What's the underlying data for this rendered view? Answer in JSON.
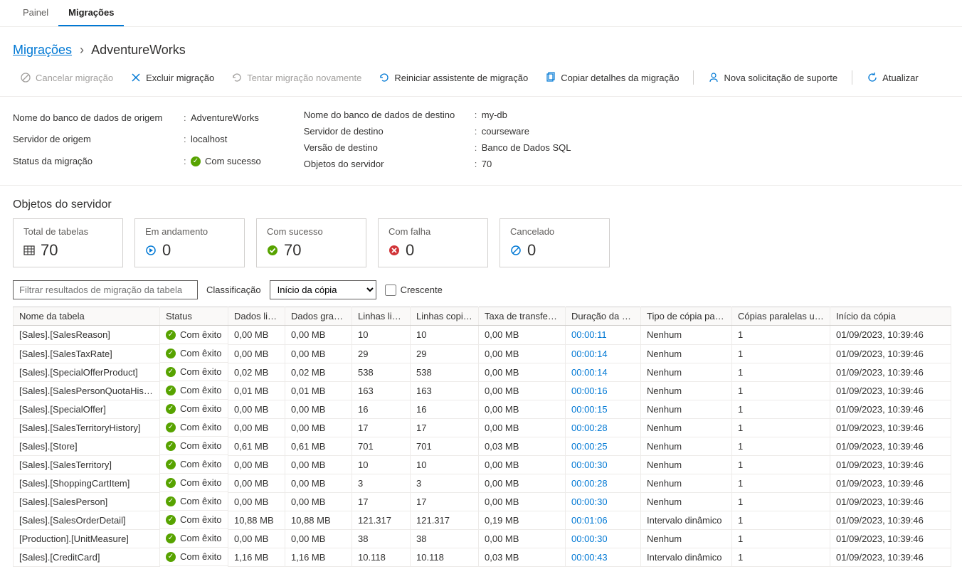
{
  "tabs": {
    "panel": "Painel",
    "migrations": "Migrações"
  },
  "breadcrumb": {
    "root": "Migrações",
    "current": "AdventureWorks"
  },
  "toolbar": {
    "cancel": "Cancelar migração",
    "delete": "Excluir migração",
    "retry": "Tentar migração novamente",
    "restart": "Reiniciar assistente de migração",
    "copy": "Copiar detalhes da migração",
    "support": "Nova solicitação de suporte",
    "refresh": "Atualizar"
  },
  "details": {
    "left": {
      "source_db_label": "Nome do banco de dados de origem",
      "source_db_value": "AdventureWorks",
      "source_server_label": "Servidor de origem",
      "source_server_value": "localhost",
      "status_label": "Status da migração",
      "status_value": "Com sucesso"
    },
    "right": {
      "target_db_label": "Nome do banco de dados de destino",
      "target_db_value": "my-db",
      "target_server_label": "Servidor de destino",
      "target_server_value": "courseware",
      "target_version_label": "Versão de destino",
      "target_version_value": "Banco de Dados SQL",
      "server_objects_label": "Objetos do servidor",
      "server_objects_value": "70"
    }
  },
  "section_title": "Objetos do servidor",
  "cards": {
    "total": {
      "label": "Total de tabelas",
      "value": "70",
      "icon_color": "#323130"
    },
    "inprogress": {
      "label": "Em andamento",
      "value": "0",
      "icon_color": "#0078d4"
    },
    "success": {
      "label": "Com sucesso",
      "value": "70",
      "icon_color": "#57a300"
    },
    "failed": {
      "label": "Com falha",
      "value": "0",
      "icon_color": "#d13438"
    },
    "canceled": {
      "label": "Cancelado",
      "value": "0",
      "icon_color": "#0078d4"
    }
  },
  "filter": {
    "placeholder": "Filtrar resultados de migração da tabela",
    "sort_label": "Classificação",
    "sort_value": "Início da cópia",
    "ascending_label": "Crescente"
  },
  "columns": [
    "Nome da tabela",
    "Status",
    "Dados lidos",
    "Dados gravados",
    "Linhas lidas",
    "Linhas copiadas",
    "Taxa de transferência...",
    "Duração da cópia",
    "Tipo de cópia paralela",
    "Cópias paralelas usadas",
    "Início da cópia"
  ],
  "col_widths": [
    "206px",
    "96px",
    "80px",
    "94px",
    "82px",
    "96px",
    "122px",
    "106px",
    "128px",
    "138px",
    "170px"
  ],
  "status_text": "Com êxito",
  "rows": [
    {
      "name": "[Sales].[SalesReason]",
      "read": "0,00 MB",
      "written": "0,00 MB",
      "rows_read": "10",
      "rows_copied": "10",
      "rate": "0,00 MB",
      "duration": "00:00:11",
      "parallel_type": "Nenhum",
      "parallel_used": "1",
      "start": "01/09/2023, 10:39:46"
    },
    {
      "name": "[Sales].[SalesTaxRate]",
      "read": "0,00 MB",
      "written": "0,00 MB",
      "rows_read": "29",
      "rows_copied": "29",
      "rate": "0,00 MB",
      "duration": "00:00:14",
      "parallel_type": "Nenhum",
      "parallel_used": "1",
      "start": "01/09/2023, 10:39:46"
    },
    {
      "name": "[Sales].[SpecialOfferProduct]",
      "read": "0,02 MB",
      "written": "0,02 MB",
      "rows_read": "538",
      "rows_copied": "538",
      "rate": "0,00 MB",
      "duration": "00:00:14",
      "parallel_type": "Nenhum",
      "parallel_used": "1",
      "start": "01/09/2023, 10:39:46"
    },
    {
      "name": "[Sales].[SalesPersonQuotaHistory]",
      "read": "0,01 MB",
      "written": "0,01 MB",
      "rows_read": "163",
      "rows_copied": "163",
      "rate": "0,00 MB",
      "duration": "00:00:16",
      "parallel_type": "Nenhum",
      "parallel_used": "1",
      "start": "01/09/2023, 10:39:46"
    },
    {
      "name": "[Sales].[SpecialOffer]",
      "read": "0,00 MB",
      "written": "0,00 MB",
      "rows_read": "16",
      "rows_copied": "16",
      "rate": "0,00 MB",
      "duration": "00:00:15",
      "parallel_type": "Nenhum",
      "parallel_used": "1",
      "start": "01/09/2023, 10:39:46"
    },
    {
      "name": "[Sales].[SalesTerritoryHistory]",
      "read": "0,00 MB",
      "written": "0,00 MB",
      "rows_read": "17",
      "rows_copied": "17",
      "rate": "0,00 MB",
      "duration": "00:00:28",
      "parallel_type": "Nenhum",
      "parallel_used": "1",
      "start": "01/09/2023, 10:39:46"
    },
    {
      "name": "[Sales].[Store]",
      "read": "0,61 MB",
      "written": "0,61 MB",
      "rows_read": "701",
      "rows_copied": "701",
      "rate": "0,03 MB",
      "duration": "00:00:25",
      "parallel_type": "Nenhum",
      "parallel_used": "1",
      "start": "01/09/2023, 10:39:46"
    },
    {
      "name": "[Sales].[SalesTerritory]",
      "read": "0,00 MB",
      "written": "0,00 MB",
      "rows_read": "10",
      "rows_copied": "10",
      "rate": "0,00 MB",
      "duration": "00:00:30",
      "parallel_type": "Nenhum",
      "parallel_used": "1",
      "start": "01/09/2023, 10:39:46"
    },
    {
      "name": "[Sales].[ShoppingCartItem]",
      "read": "0,00 MB",
      "written": "0,00 MB",
      "rows_read": "3",
      "rows_copied": "3",
      "rate": "0,00 MB",
      "duration": "00:00:28",
      "parallel_type": "Nenhum",
      "parallel_used": "1",
      "start": "01/09/2023, 10:39:46"
    },
    {
      "name": "[Sales].[SalesPerson]",
      "read": "0,00 MB",
      "written": "0,00 MB",
      "rows_read": "17",
      "rows_copied": "17",
      "rate": "0,00 MB",
      "duration": "00:00:30",
      "parallel_type": "Nenhum",
      "parallel_used": "1",
      "start": "01/09/2023, 10:39:46"
    },
    {
      "name": "[Sales].[SalesOrderDetail]",
      "read": "10,88 MB",
      "written": "10,88 MB",
      "rows_read": "121.317",
      "rows_copied": "121.317",
      "rate": "0,19 MB",
      "duration": "00:01:06",
      "parallel_type": "Intervalo dinâmico",
      "parallel_used": "1",
      "start": "01/09/2023, 10:39:46"
    },
    {
      "name": "[Production].[UnitMeasure]",
      "read": "0,00 MB",
      "written": "0,00 MB",
      "rows_read": "38",
      "rows_copied": "38",
      "rate": "0,00 MB",
      "duration": "00:00:30",
      "parallel_type": "Nenhum",
      "parallel_used": "1",
      "start": "01/09/2023, 10:39:46"
    },
    {
      "name": "[Sales].[CreditCard]",
      "read": "1,16 MB",
      "written": "1,16 MB",
      "rows_read": "10.118",
      "rows_copied": "10.118",
      "rate": "0,03 MB",
      "duration": "00:00:43",
      "parallel_type": "Intervalo dinâmico",
      "parallel_used": "1",
      "start": "01/09/2023, 10:39:46"
    }
  ]
}
